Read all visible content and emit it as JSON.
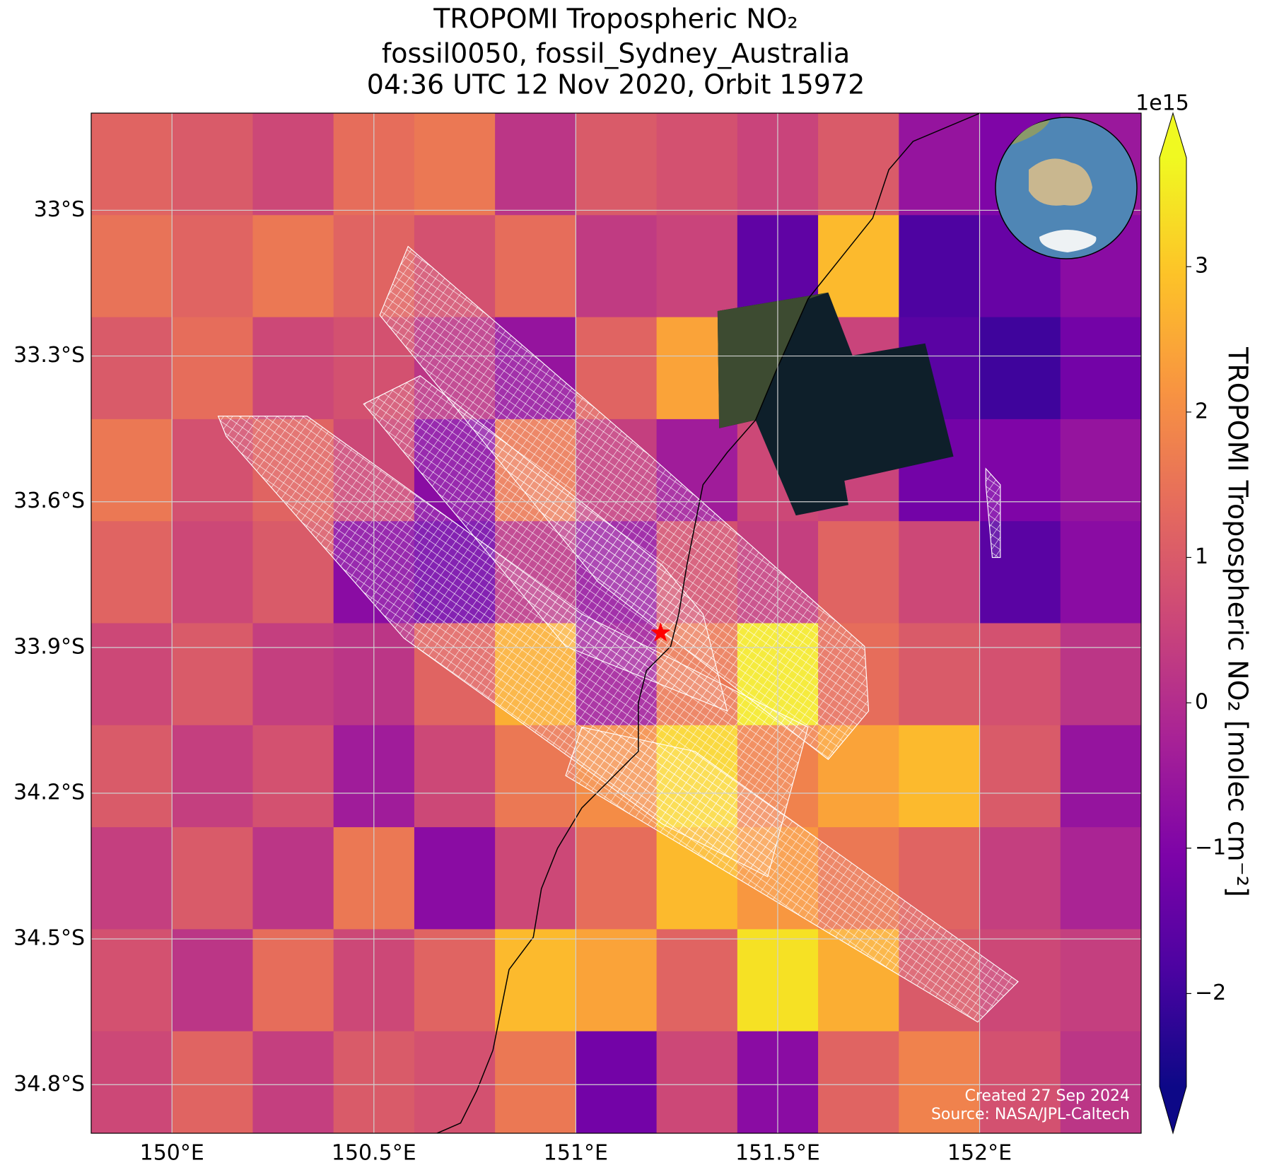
{
  "chart_data": {
    "type": "heatmap",
    "title": [
      "TROPOMI Tropospheric NO₂",
      "fossil0050, fossil_Sydney_Australia",
      "04:36 UTC 12 Nov 2020, Orbit 15972"
    ],
    "xlim": [
      149.8,
      152.4
    ],
    "ylim": [
      -34.9,
      -32.8
    ],
    "xticks": [
      {
        "value": 150,
        "label": "150°E"
      },
      {
        "value": 150.5,
        "label": "150.5°E"
      },
      {
        "value": 151,
        "label": "151°E"
      },
      {
        "value": 151.5,
        "label": "151.5°E"
      },
      {
        "value": 152,
        "label": "152°E"
      }
    ],
    "yticks": [
      {
        "value": -33,
        "label": "33°S"
      },
      {
        "value": -33.3,
        "label": "33.3°S"
      },
      {
        "value": -33.6,
        "label": "33.6°S"
      },
      {
        "value": -33.9,
        "label": "33.9°S"
      },
      {
        "value": -34.2,
        "label": "34.2°S"
      },
      {
        "value": -34.5,
        "label": "34.5°S"
      },
      {
        "value": -34.8,
        "label": "34.8°S"
      }
    ],
    "grid": true,
    "values": [
      [
        1.2,
        1.0,
        0.6,
        1.4,
        1.6,
        0.2,
        1.0,
        0.8,
        0.5,
        1.0,
        -0.6,
        -1.0,
        -0.5
      ],
      [
        1.5,
        1.2,
        1.6,
        1.2,
        0.8,
        1.4,
        0.3,
        0.5,
        -1.5,
        2.8,
        -1.8,
        -1.4,
        -0.8
      ],
      [
        1.0,
        1.4,
        0.6,
        0.8,
        0.2,
        -0.6,
        1.2,
        2.4,
        0.5,
        0.5,
        -1.6,
        -2.0,
        -1.2
      ],
      [
        1.6,
        0.8,
        1.2,
        0.6,
        -0.8,
        1.6,
        0.4,
        -0.4,
        0.6,
        0.5,
        -1.2,
        -1.0,
        -0.6
      ],
      [
        1.2,
        0.6,
        1.0,
        -0.8,
        -1.2,
        0.2,
        -0.6,
        0.8,
        0.4,
        1.2,
        0.6,
        -1.6,
        -0.8
      ],
      [
        0.6,
        1.0,
        0.4,
        0.2,
        1.2,
        2.6,
        -0.4,
        1.6,
        3.5,
        1.4,
        1.0,
        0.8,
        0.2
      ],
      [
        1.0,
        0.4,
        0.8,
        -0.4,
        0.6,
        1.6,
        2.0,
        3.2,
        1.8,
        2.4,
        2.8,
        1.0,
        -0.6
      ],
      [
        0.4,
        1.0,
        0.2,
        1.6,
        -0.8,
        0.6,
        1.4,
        2.8,
        2.2,
        1.6,
        1.2,
        0.4,
        -0.2
      ],
      [
        0.8,
        0.2,
        1.4,
        0.6,
        1.2,
        2.8,
        2.4,
        1.2,
        3.4,
        2.6,
        1.0,
        0.6,
        0.4
      ],
      [
        0.6,
        1.2,
        0.4,
        1.0,
        0.8,
        1.6,
        -1.2,
        0.6,
        -0.8,
        1.2,
        1.8,
        0.8,
        0.2
      ]
    ],
    "colorbar": {
      "label": "TROPOMI Tropospheric NO₂ [molec cm⁻²]",
      "scale_label": "1e15",
      "colormap": "plasma",
      "extend": "both",
      "clim": [
        -2.64,
        3.75
      ],
      "ticks": [
        3,
        2,
        1,
        0,
        {
          "value": -1,
          "label": "−1"
        },
        {
          "value": -2,
          "label": "−2"
        }
      ]
    },
    "marker": {
      "lon": 151.21,
      "lat": -33.87,
      "color": "red"
    },
    "credits": [
      "Created 27 Sep 2024",
      "Source: NASA/JPL-Caltech"
    ]
  }
}
